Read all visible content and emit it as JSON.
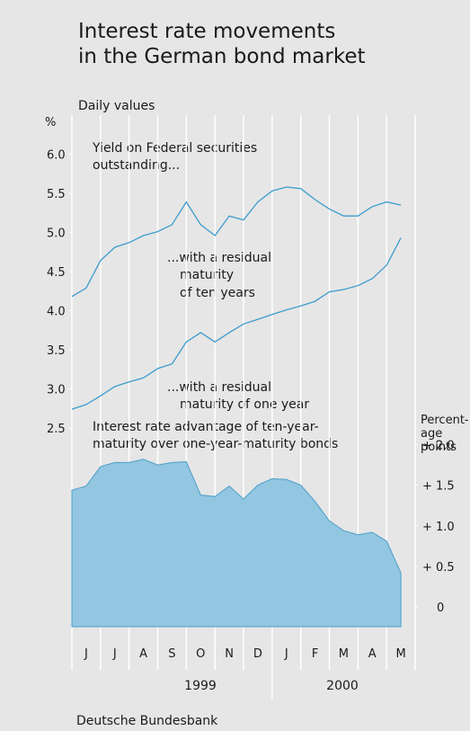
{
  "chart_data": {
    "type": "line",
    "title": [
      "Interest rate movements",
      "in the German bond market"
    ],
    "subtitle": "Daily values",
    "y_label": "%",
    "y2_label": [
      "Percent-",
      "age",
      "points"
    ],
    "categories": [
      "J",
      "J",
      "A",
      "S",
      "O",
      "N",
      "D",
      "J",
      "F",
      "M",
      "A",
      "M"
    ],
    "years": [
      "1999",
      "2000"
    ],
    "source": "Deutsche Bundesbank",
    "annotations": [
      [
        "Yield on Federal securities",
        "outstanding..."
      ],
      [
        "...with a residual",
        "maturity",
        "of ten years"
      ],
      [
        "...with a residual",
        "maturity of one year"
      ],
      [
        "Interest rate advantage of ten-year-",
        "maturity over one-year-maturity bonds"
      ]
    ],
    "xlim": [
      0,
      12
    ],
    "ylim": [
      2.5,
      6.5
    ],
    "yticks": [
      {
        "value": 2.5,
        "label": "2.5"
      },
      {
        "value": 3,
        "label": "3.0"
      },
      {
        "value": 3.5,
        "label": "3.5"
      },
      {
        "value": 4,
        "label": "4.0"
      },
      {
        "value": 4.5,
        "label": "4.5"
      },
      {
        "value": 5,
        "label": "5.0"
      },
      {
        "value": 5.5,
        "label": "5.5"
      },
      {
        "value": 6,
        "label": "6.0"
      }
    ],
    "y2lim": [
      -0.25,
      2.25
    ],
    "y2ticks": [
      0,
      {
        "value": 0.5,
        "label": "+ 0.5"
      },
      {
        "value": 1,
        "label": "+ 1.0"
      },
      {
        "value": 1.5,
        "label": "+ 1.5"
      },
      {
        "value": 2,
        "label": "+ 2.0"
      }
    ],
    "x": [
      0,
      0.5,
      1,
      1.5,
      2,
      2.5,
      3,
      3.5,
      4,
      4.5,
      5,
      5.5,
      6,
      6.5,
      7,
      7.5,
      8,
      8.5,
      9,
      9.5,
      10,
      10.5,
      11,
      11.5
    ],
    "series": [
      {
        "name": "ten years",
        "color": "#3d9ccc",
        "values": [
          4.18,
          4.29,
          4.64,
          4.81,
          4.87,
          4.96,
          5.01,
          5.1,
          5.39,
          5.1,
          4.96,
          5.21,
          5.16,
          5.39,
          5.53,
          5.58,
          5.56,
          5.42,
          5.3,
          5.21,
          5.21,
          5.33,
          5.39,
          5.35
        ]
      },
      {
        "name": "one year",
        "color": "#3d9ccc",
        "values": [
          2.74,
          2.8,
          2.91,
          3.03,
          3.09,
          3.14,
          3.26,
          3.32,
          3.6,
          3.72,
          3.6,
          3.72,
          3.83,
          3.89,
          3.95,
          4.01,
          4.06,
          4.12,
          4.24,
          4.27,
          4.32,
          4.41,
          4.58,
          4.93
        ]
      },
      {
        "name": "advantage",
        "color": "#93c6e0",
        "axis": "y2",
        "values": [
          1.44,
          1.49,
          1.73,
          1.78,
          1.78,
          1.82,
          1.75,
          1.78,
          1.79,
          1.38,
          1.36,
          1.49,
          1.33,
          1.5,
          1.58,
          1.57,
          1.5,
          1.3,
          1.06,
          0.94,
          0.89,
          0.92,
          0.81,
          0.42
        ]
      }
    ]
  }
}
